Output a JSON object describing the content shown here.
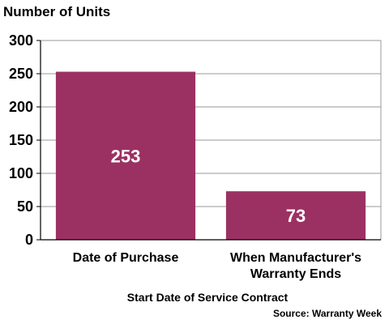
{
  "chart_data": {
    "type": "bar",
    "title": "Number of Units",
    "xlabel": "Start Date of Service Contract",
    "ylabel": "",
    "source": "Source: Warranty Week",
    "categories": [
      [
        "Date of Purchase"
      ],
      [
        "When Manufacturer's",
        "Warranty Ends"
      ]
    ],
    "values": [
      253,
      73
    ],
    "data_labels": [
      "253",
      "73"
    ],
    "ylim": [
      0,
      300
    ],
    "yticks": [
      0,
      50,
      100,
      150,
      200,
      250,
      300
    ],
    "grid": true,
    "legend": "none",
    "colors": {
      "bar": "#9b3163",
      "grid": "#999999",
      "axis": "#000000"
    }
  }
}
